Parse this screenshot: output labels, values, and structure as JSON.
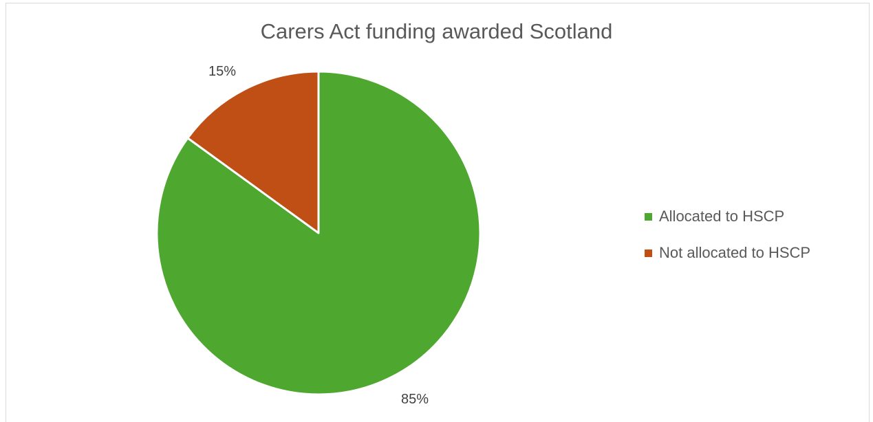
{
  "chart_data": {
    "type": "pie",
    "title": "Carers Act funding awarded Scotland",
    "categories": [
      "Allocated to HSCP",
      "Not allocated to HSCP"
    ],
    "values": [
      85,
      15
    ],
    "data_labels": [
      "85%",
      "15%"
    ],
    "colors": [
      "#4EA72E",
      "#C04F15"
    ],
    "legend_position": "right",
    "start_angle": "12 o'clock, clockwise"
  }
}
